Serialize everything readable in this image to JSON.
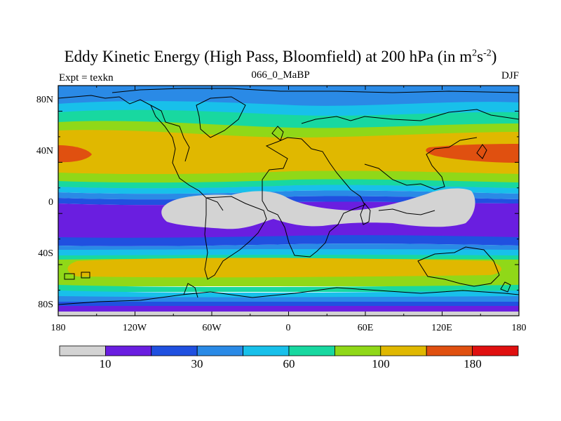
{
  "title": {
    "main": "Eddy Kinetic Energy (High Pass, Bloomfield) at 200 hPa (in m",
    "sup1": "2",
    "mid": "s",
    "sup2": "-2",
    "end": ")"
  },
  "subtitle": "066_0_MaBP",
  "experiment": "Expt = texkn",
  "season": "DJF",
  "map": {
    "lat_labels": [
      "80N",
      "40N",
      "0",
      "40S",
      "80S"
    ],
    "lon_labels": [
      "180",
      "120W",
      "60W",
      "0",
      "60E",
      "120E",
      "180"
    ],
    "colors": {
      "gray": "#d3d3d3",
      "violet": "#6a1ee0",
      "blue": "#2050e0",
      "midblue": "#2a8ae6",
      "cyan": "#18c0ea",
      "teal": "#18d8a0",
      "green": "#90d818",
      "gold": "#e0b800",
      "orange": "#e05010",
      "red": "#e01010"
    }
  },
  "colorbar": {
    "colors": [
      "#d3d3d3",
      "#6a1ee0",
      "#2050e0",
      "#2a8ae6",
      "#18c0ea",
      "#18d8a0",
      "#90d818",
      "#e0b800",
      "#e05010",
      "#e01010"
    ],
    "labels": [
      "10",
      "30",
      "60",
      "100",
      "180"
    ]
  }
}
